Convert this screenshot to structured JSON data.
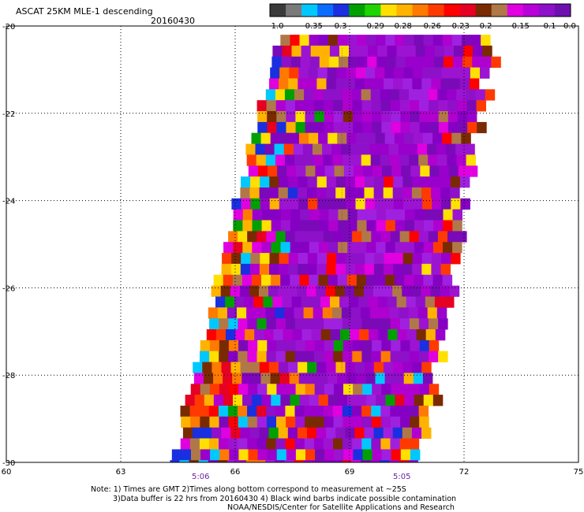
{
  "header": {
    "title": "ASCAT 25KM MLE-1 descending",
    "date": "20160430"
  },
  "colorbar": {
    "ticks": [
      "-1.0",
      "-0.35",
      "-0.3",
      "-0.29",
      "-0.28",
      "-0.26",
      "-0.23",
      "-0.2",
      "-0.15",
      "-0.1",
      "0.0"
    ],
    "colors": [
      "#3a3a3a",
      "#7a7a7a",
      "#00c8ff",
      "#0a6cff",
      "#1a2fe0",
      "#00a000",
      "#1fd400",
      "#ffe000",
      "#ffb300",
      "#ff7a00",
      "#ff3a00",
      "#ff0000",
      "#e60022",
      "#7a2a00",
      "#b07848",
      "#e000e0",
      "#b800d8",
      "#8e10c8",
      "#6e10b0"
    ]
  },
  "axes": {
    "x_ticks": [
      "60",
      "63",
      "66",
      "69",
      "72",
      "75"
    ],
    "y_ticks": [
      "-20",
      "-22",
      "-24",
      "-26",
      "-28",
      "-30"
    ],
    "time_labels": [
      "5:06",
      "5:05"
    ]
  },
  "notes": {
    "line1": "Note: 1) Times are GMT 2)Times along bottom correspond to measurement at ~25S",
    "line2": "3)Data buffer is 22 hrs from 20160430 4) Black wind barbs indicate possible contamination",
    "line3": "NOAA/NESDIS/Center for Satellite Applications and Research"
  },
  "map_data": {
    "type": "gridded-swath",
    "lon_range": [
      60,
      75
    ],
    "lat_range": [
      -30,
      -20
    ],
    "cell_size_deg": 0.25,
    "swath": {
      "left_edge_lon": [
        [
          -20.2,
          67.1
        ],
        [
          -30.0,
          64.3
        ]
      ],
      "right_edge_lon": [
        [
          -20.2,
          72.7
        ],
        [
          -30.0,
          70.7
        ]
      ],
      "gap_near_lon": 68.8
    },
    "dominant_value_range": [
      -0.1,
      0.0
    ]
  }
}
